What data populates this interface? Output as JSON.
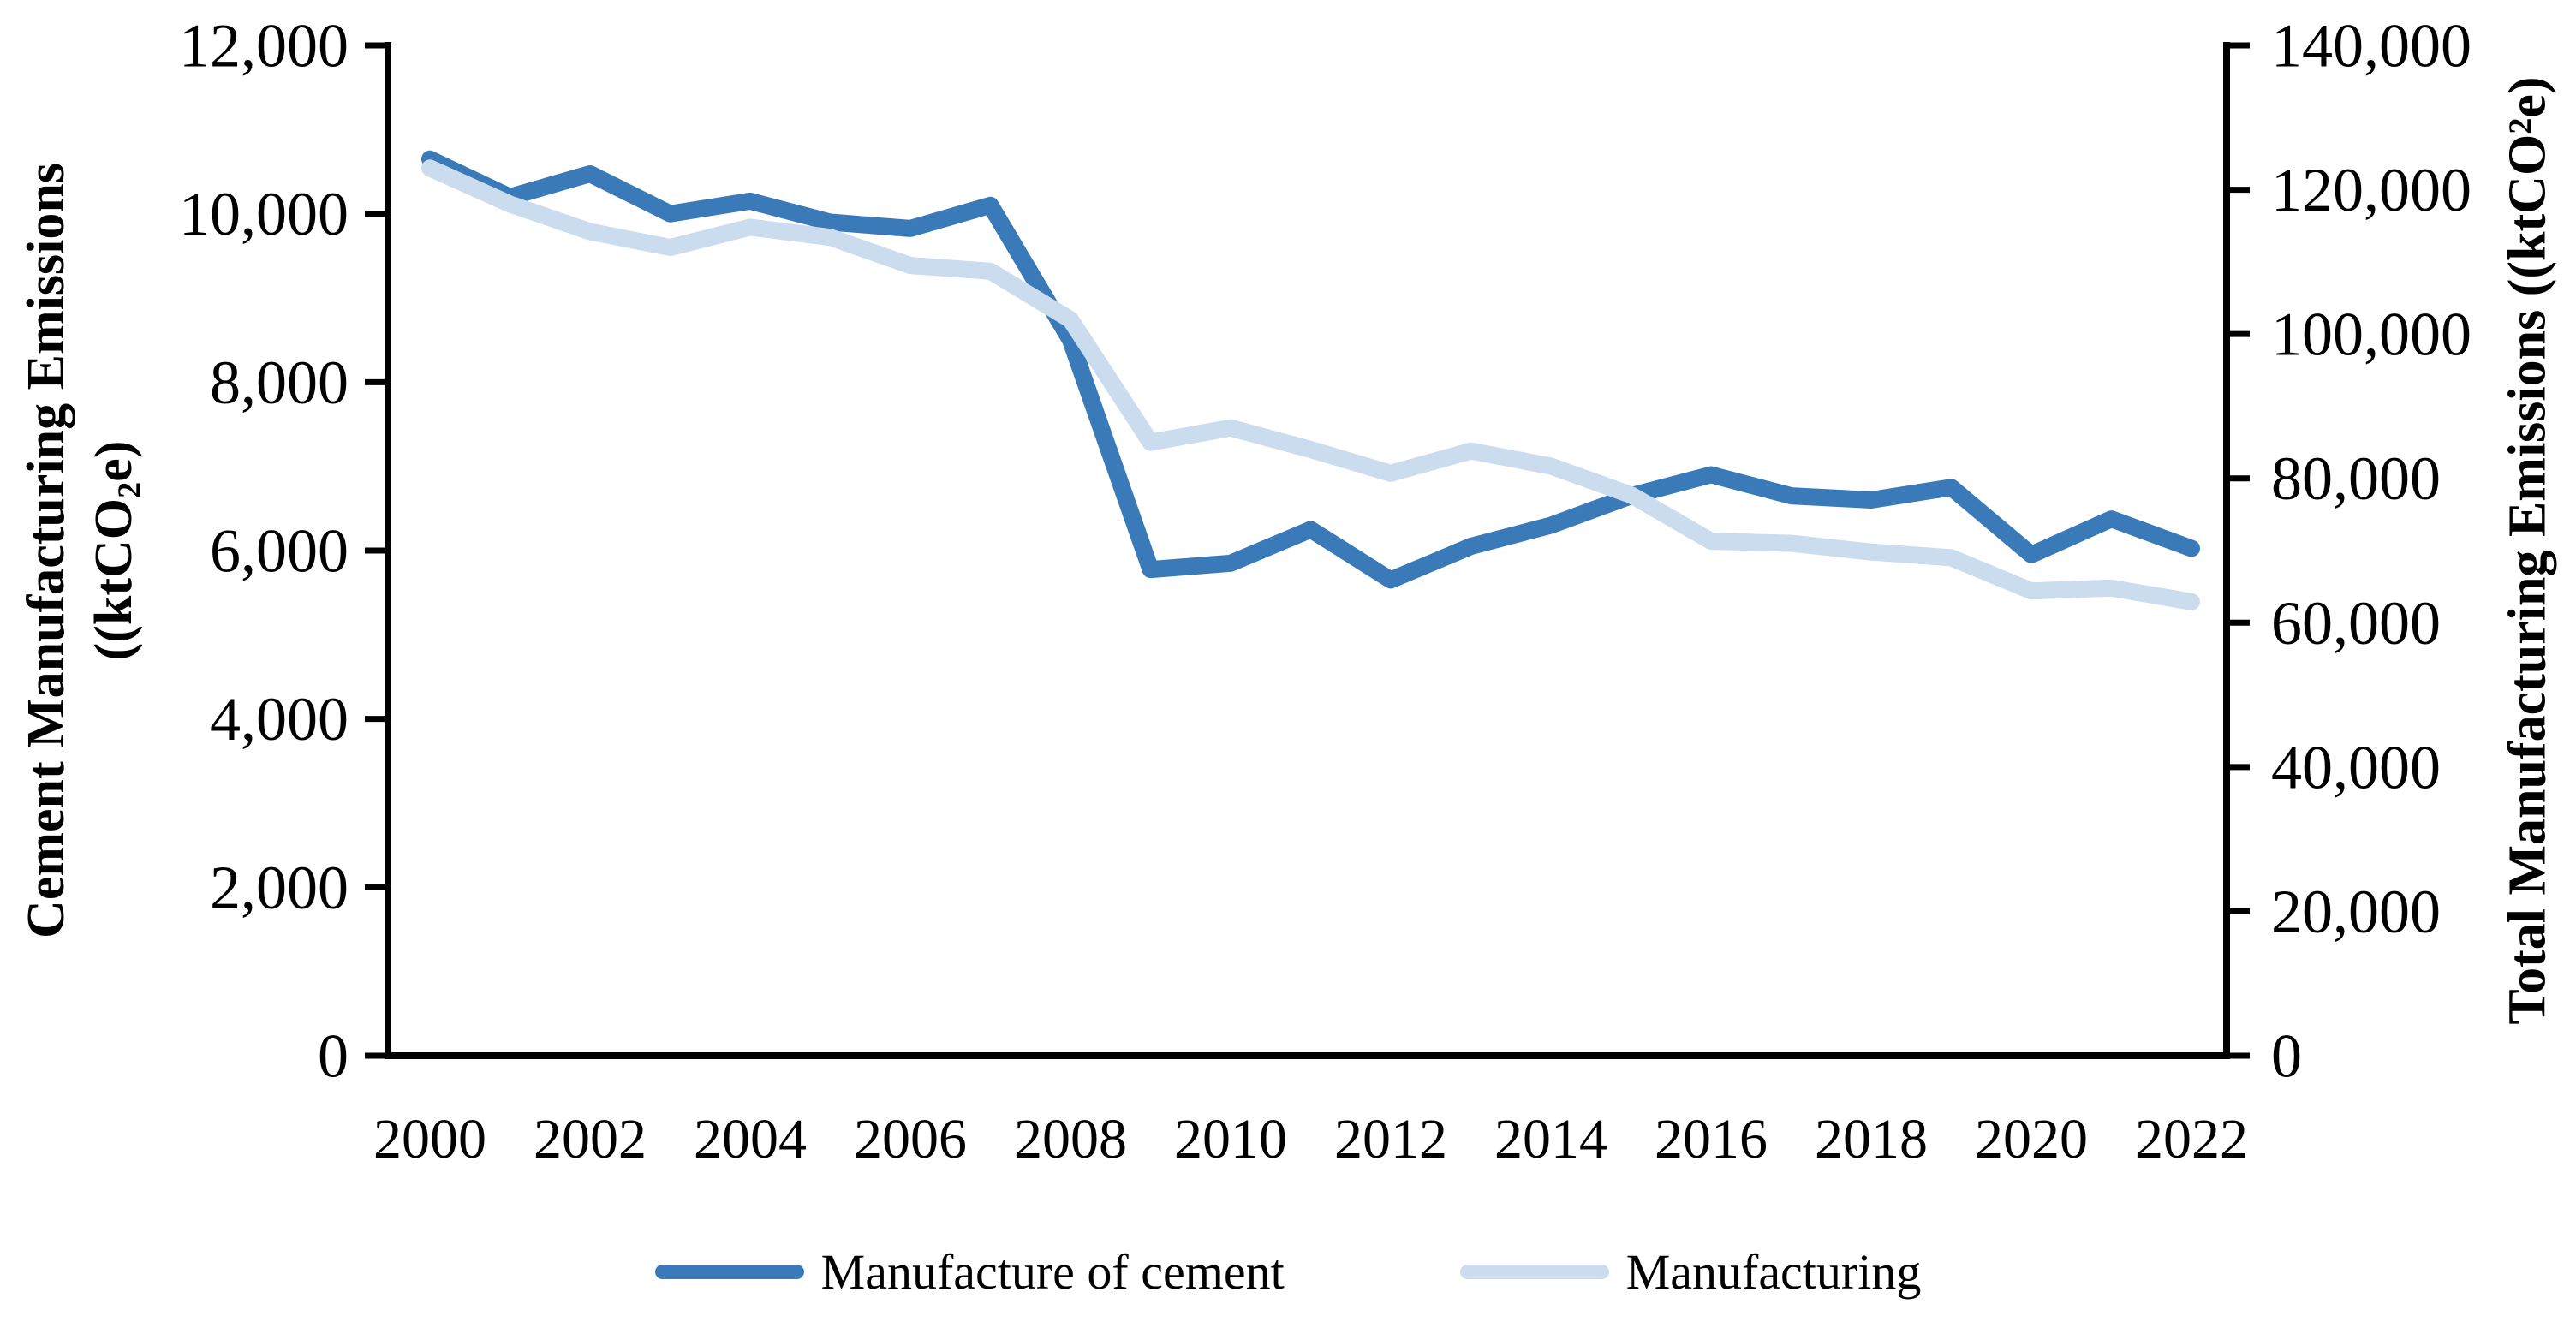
{
  "chart_data": {
    "type": "line",
    "title": "",
    "grid": false,
    "legend_position": "bottom",
    "x": [
      2000,
      2001,
      2002,
      2003,
      2004,
      2005,
      2006,
      2007,
      2008,
      2009,
      2010,
      2011,
      2012,
      2013,
      2014,
      2015,
      2016,
      2017,
      2018,
      2019,
      2020,
      2021,
      2022
    ],
    "x_tick_labels": [
      "2000",
      "2002",
      "2004",
      "2006",
      "2008",
      "2010",
      "2012",
      "2014",
      "2016",
      "2018",
      "2020",
      "2022"
    ],
    "series": [
      {
        "name": "Manufacture of cement",
        "axis": "left",
        "color": "#3a7ab8",
        "values": [
          10650,
          10200,
          10475,
          10000,
          10150,
          9900,
          9825,
          10100,
          8500,
          5775,
          5850,
          6250,
          5650,
          6050,
          6300,
          6650,
          6900,
          6650,
          6600,
          6750,
          5950,
          6375,
          6025
        ]
      },
      {
        "name": "Manufacturing",
        "axis": "right",
        "color": "#cadcee",
        "values": [
          123000,
          118000,
          114200,
          112000,
          114800,
          113400,
          109500,
          108700,
          102000,
          85000,
          87000,
          84000,
          80700,
          83800,
          81700,
          77700,
          71300,
          71000,
          69800,
          69000,
          64400,
          64800,
          62900
        ]
      }
    ],
    "left_axis": {
      "range": [
        0,
        12000
      ],
      "tick_step": 2000,
      "tick_labels": [
        "0",
        "2,000",
        "4,000",
        "6,000",
        "8,000",
        "10,000",
        "12,000"
      ],
      "title": {
        "line1": "Cement Manufacturing Emissions",
        "line2_pre": "((ktCO",
        "line2_sub": "2",
        "line2_post": "e)"
      }
    },
    "right_axis": {
      "range": [
        0,
        140000
      ],
      "tick_step": 20000,
      "tick_labels": [
        "0",
        "20,000",
        "40,000",
        "60,000",
        "80,000",
        "100,000",
        "120,000",
        "140,000"
      ],
      "title": {
        "pre": "Total Manufacturing Emissions ((ktCO",
        "sup": "2",
        "post": "e)"
      }
    },
    "legend": [
      {
        "label": "Manufacture of cement",
        "color": "#3a7ab8"
      },
      {
        "label": "Manufacturing",
        "color": "#cadcee"
      }
    ]
  }
}
